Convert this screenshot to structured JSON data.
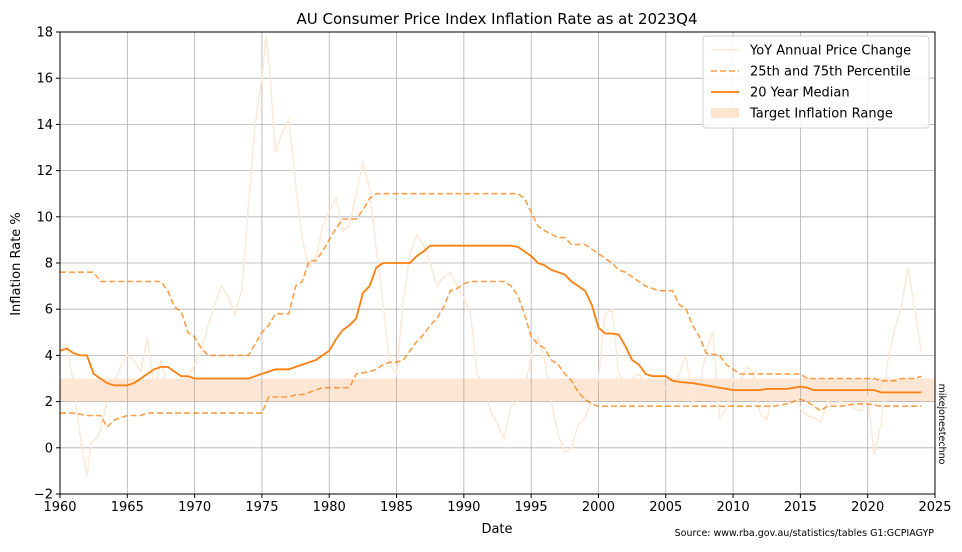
{
  "chart_data": {
    "type": "line",
    "title": "AU Consumer Price Index Inflation Rate as at 2023Q4",
    "xlabel": "Date",
    "ylabel": "Inflation Rate %",
    "xlim": [
      1960,
      2025
    ],
    "ylim": [
      -2,
      18
    ],
    "x_ticks": [
      "1960",
      "1965",
      "1970",
      "1975",
      "1980",
      "1985",
      "1990",
      "1995",
      "2000",
      "2005",
      "2010",
      "2015",
      "2020",
      "2025"
    ],
    "y_ticks": [
      "−2",
      "0",
      "2",
      "4",
      "6",
      "8",
      "10",
      "12",
      "14",
      "16",
      "18"
    ],
    "grid": true,
    "legend_position": "top-right",
    "target_band": {
      "name": "Target Inflation Range",
      "low": 2,
      "high": 3
    },
    "colors": {
      "main": "#ff7f0e",
      "annual": "#ffe8d6",
      "band": "#fde4cf"
    },
    "series": [
      {
        "name": "YoY Annual Price Change",
        "style": "faint",
        "x": [
          1960.0,
          1960.5,
          1961.0,
          1961.5,
          1961.8,
          1962.0,
          1962.3,
          1962.5,
          1962.8,
          1963.0,
          1963.3,
          1963.5,
          1964.0,
          1964.5,
          1965.0,
          1965.5,
          1966.0,
          1966.5,
          1967.0,
          1967.5,
          1968.0,
          1968.5,
          1969.0,
          1969.5,
          1970.0,
          1970.5,
          1971.0,
          1971.5,
          1972.0,
          1972.5,
          1973.0,
          1973.5,
          1974.0,
          1974.5,
          1975.0,
          1975.3,
          1975.6,
          1976.0,
          1976.5,
          1977.0,
          1977.5,
          1978.0,
          1978.5,
          1979.0,
          1979.5,
          1980.0,
          1980.5,
          1981.0,
          1981.5,
          1982.0,
          1982.5,
          1983.0,
          1983.5,
          1984.0,
          1984.5,
          1985.0,
          1985.5,
          1986.0,
          1986.5,
          1987.0,
          1987.5,
          1988.0,
          1988.5,
          1989.0,
          1989.5,
          1990.0,
          1990.5,
          1991.0,
          1991.5,
          1992.0,
          1992.5,
          1993.0,
          1993.5,
          1994.0,
          1994.5,
          1995.0,
          1995.5,
          1996.0,
          1996.5,
          1997.0,
          1997.5,
          1998.0,
          1998.5,
          1999.0,
          1999.5,
          2000.0,
          2000.5,
          2001.0,
          2001.5,
          2002.0,
          2002.5,
          2003.0,
          2003.5,
          2004.0,
          2004.5,
          2005.0,
          2005.5,
          2006.0,
          2006.5,
          2007.0,
          2007.5,
          2008.0,
          2008.5,
          2009.0,
          2009.5,
          2010.0,
          2010.5,
          2011.0,
          2011.5,
          2012.0,
          2012.5,
          2013.0,
          2013.5,
          2014.0,
          2014.5,
          2015.0,
          2015.5,
          2016.0,
          2016.5,
          2017.0,
          2017.5,
          2018.0,
          2018.5,
          2019.0,
          2019.5,
          2020.0,
          2020.5,
          2021.0,
          2021.5,
          2022.0,
          2022.5,
          2023.0,
          2023.5,
          2024.0
        ],
        "values": [
          4.2,
          4.5,
          2.8,
          0.5,
          -0.5,
          -1.2,
          0.2,
          0.3,
          0.5,
          0.8,
          1.5,
          2.0,
          2.8,
          3.5,
          4.0,
          3.8,
          3.3,
          4.8,
          2.5,
          3.8,
          2.6,
          2.2,
          2.9,
          3.0,
          3.6,
          4.2,
          5.3,
          6.2,
          7.0,
          6.5,
          5.8,
          6.8,
          10.5,
          14.0,
          16.0,
          17.8,
          16.2,
          12.8,
          13.6,
          14.2,
          11.4,
          9.0,
          7.8,
          8.2,
          9.6,
          10.2,
          10.8,
          9.4,
          9.6,
          11.0,
          12.4,
          11.2,
          8.6,
          6.2,
          3.6,
          3.2,
          6.4,
          8.4,
          9.2,
          8.8,
          8.0,
          7.0,
          7.4,
          7.6,
          7.0,
          6.5,
          5.8,
          3.2,
          2.6,
          1.6,
          1.0,
          0.4,
          1.8,
          2.0,
          2.5,
          4.0,
          4.8,
          3.8,
          2.0,
          0.6,
          -0.2,
          0.0,
          1.0,
          1.3,
          2.0,
          3.0,
          5.8,
          6.0,
          3.2,
          2.8,
          3.0,
          3.2,
          2.8,
          2.5,
          2.4,
          2.6,
          2.8,
          3.2,
          4.0,
          2.0,
          2.6,
          4.2,
          5.0,
          1.3,
          1.7,
          3.0,
          2.9,
          3.5,
          3.3,
          1.5,
          1.2,
          2.4,
          2.2,
          3.0,
          2.3,
          1.7,
          1.4,
          1.3,
          1.1,
          2.0,
          1.9,
          2.0,
          1.9,
          1.7,
          1.6,
          2.2,
          -0.3,
          1.1,
          3.8,
          5.1,
          6.1,
          7.8,
          6.0,
          4.1
        ]
      },
      {
        "name": "25th and 75th Percentile",
        "style": "dashed",
        "upper": {
          "x": [
            1960.0,
            1962.5,
            1963.0,
            1967.5,
            1968.0,
            1968.5,
            1969.0,
            1969.5,
            1970.0,
            1970.5,
            1971.0,
            1974.0,
            1974.5,
            1975.0,
            1975.5,
            1976.0,
            1977.0,
            1977.5,
            1978.0,
            1978.5,
            1979.0,
            1979.5,
            1980.0,
            1980.5,
            1981.0,
            1982.0,
            1982.5,
            1983.0,
            1983.5,
            1984.0,
            1994.0,
            1994.5,
            1995.0,
            1995.5,
            1996.0,
            1997.0,
            1997.5,
            1998.0,
            1999.0,
            1999.5,
            2000.0,
            2000.5,
            2001.0,
            2001.5,
            2002.0,
            2003.0,
            2003.5,
            2004.0,
            2004.5,
            2005.0,
            2005.5,
            2006.0,
            2006.5,
            2007.0,
            2007.5,
            2008.0,
            2009.0,
            2009.5,
            2010.0,
            2010.5,
            2011.0,
            2015.0,
            2015.5,
            2016.0,
            2020.5,
            2021.0,
            2022.0,
            2022.5,
            2023.0,
            2023.5,
            2024.0
          ],
          "values": [
            7.6,
            7.6,
            7.2,
            7.2,
            6.8,
            6.1,
            5.9,
            5.0,
            4.8,
            4.3,
            4.0,
            4.0,
            4.5,
            5.0,
            5.3,
            5.8,
            5.8,
            7.0,
            7.2,
            8.1,
            8.1,
            8.5,
            9.0,
            9.5,
            9.9,
            9.9,
            10.3,
            10.8,
            11.0,
            11.0,
            11.0,
            10.8,
            10.2,
            9.6,
            9.4,
            9.1,
            9.1,
            8.8,
            8.8,
            8.6,
            8.4,
            8.2,
            8.0,
            7.7,
            7.6,
            7.2,
            7.0,
            6.9,
            6.8,
            6.8,
            6.8,
            6.2,
            6.0,
            5.3,
            4.8,
            4.1,
            4.0,
            3.6,
            3.4,
            3.2,
            3.2,
            3.2,
            3.0,
            3.0,
            3.0,
            2.9,
            2.9,
            3.0,
            3.0,
            3.0,
            3.1
          ]
        },
        "lower": {
          "x": [
            1960.0,
            1961.0,
            1962.0,
            1963.0,
            1963.5,
            1964.0,
            1964.5,
            1965.0,
            1966.0,
            1966.5,
            1967.0,
            1975.0,
            1975.5,
            1977.0,
            1977.5,
            1978.0,
            1979.0,
            1979.5,
            1980.0,
            1981.5,
            1982.0,
            1983.0,
            1983.5,
            1984.0,
            1984.5,
            1985.0,
            1985.5,
            1986.0,
            1986.5,
            1987.0,
            1987.5,
            1988.0,
            1988.5,
            1989.0,
            1989.5,
            1990.0,
            1990.5,
            1993.0,
            1993.5,
            1994.0,
            1994.5,
            1995.0,
            1995.5,
            1996.0,
            1996.5,
            1997.0,
            1997.5,
            1998.0,
            1998.5,
            1999.0,
            1999.5,
            2000.0,
            2008.0,
            2009.0,
            2013.0,
            2014.0,
            2015.0,
            2015.5,
            2016.0,
            2016.5,
            2017.0,
            2018.0,
            2019.0,
            2020.0,
            2021.0,
            2024.0
          ],
          "values": [
            1.5,
            1.5,
            1.4,
            1.4,
            0.9,
            1.2,
            1.3,
            1.4,
            1.4,
            1.5,
            1.5,
            1.5,
            2.2,
            2.2,
            2.3,
            2.3,
            2.5,
            2.6,
            2.6,
            2.6,
            3.2,
            3.3,
            3.4,
            3.6,
            3.7,
            3.7,
            3.8,
            4.2,
            4.6,
            4.9,
            5.3,
            5.6,
            6.1,
            6.8,
            6.9,
            7.1,
            7.2,
            7.2,
            7.0,
            6.6,
            5.8,
            4.8,
            4.5,
            4.3,
            3.8,
            3.6,
            3.2,
            2.9,
            2.4,
            2.1,
            1.9,
            1.8,
            1.8,
            1.8,
            1.8,
            1.9,
            2.1,
            2.0,
            1.8,
            1.6,
            1.8,
            1.8,
            1.9,
            1.9,
            1.8,
            1.8
          ]
        }
      },
      {
        "name": "20 Year Median",
        "style": "solid",
        "x": [
          1960.0,
          1960.5,
          1961.0,
          1961.5,
          1962.0,
          1962.5,
          1963.0,
          1963.5,
          1964.0,
          1965.0,
          1965.5,
          1966.0,
          1966.5,
          1967.0,
          1967.5,
          1968.0,
          1968.5,
          1969.0,
          1969.5,
          1970.0,
          1970.5,
          1974.0,
          1974.5,
          1975.0,
          1975.5,
          1976.0,
          1977.0,
          1977.5,
          1978.0,
          1978.5,
          1979.0,
          1979.5,
          1980.0,
          1980.5,
          1981.0,
          1981.5,
          1982.0,
          1982.5,
          1983.0,
          1983.5,
          1984.0,
          1986.0,
          1986.5,
          1987.0,
          1987.5,
          1993.0,
          1993.5,
          1994.0,
          1994.5,
          1995.0,
          1995.5,
          1996.0,
          1996.5,
          1997.0,
          1997.5,
          1998.0,
          1998.5,
          1999.0,
          1999.5,
          2000.0,
          2000.5,
          2001.0,
          2001.5,
          2002.0,
          2002.5,
          2003.0,
          2003.5,
          2004.0,
          2005.0,
          2005.5,
          2006.0,
          2007.0,
          2007.5,
          2008.0,
          2009.0,
          2009.5,
          2010.0,
          2012.0,
          2012.5,
          2014.0,
          2014.5,
          2015.0,
          2015.5,
          2016.0,
          2020.5,
          2021.0,
          2024.0
        ],
        "values": [
          4.2,
          4.3,
          4.1,
          4.0,
          4.0,
          3.2,
          3.0,
          2.8,
          2.7,
          2.7,
          2.8,
          3.0,
          3.2,
          3.4,
          3.5,
          3.5,
          3.3,
          3.1,
          3.1,
          3.0,
          3.0,
          3.0,
          3.1,
          3.2,
          3.3,
          3.4,
          3.4,
          3.5,
          3.6,
          3.7,
          3.8,
          4.0,
          4.2,
          4.7,
          5.1,
          5.3,
          5.6,
          6.7,
          7.0,
          7.8,
          8.0,
          8.0,
          8.3,
          8.5,
          8.75,
          8.75,
          8.75,
          8.7,
          8.5,
          8.3,
          8.0,
          7.9,
          7.7,
          7.6,
          7.5,
          7.2,
          7.0,
          6.8,
          6.2,
          5.2,
          4.95,
          4.95,
          4.9,
          4.4,
          3.8,
          3.6,
          3.2,
          3.1,
          3.1,
          2.9,
          2.85,
          2.8,
          2.75,
          2.7,
          2.6,
          2.55,
          2.5,
          2.5,
          2.55,
          2.55,
          2.6,
          2.65,
          2.6,
          2.5,
          2.5,
          2.4,
          2.4
        ]
      }
    ]
  },
  "annotations": {
    "source": "Source: www.rba.gov.au/statistics/tables G1:GCPIAGYP",
    "watermark": "mikejonestechno"
  }
}
